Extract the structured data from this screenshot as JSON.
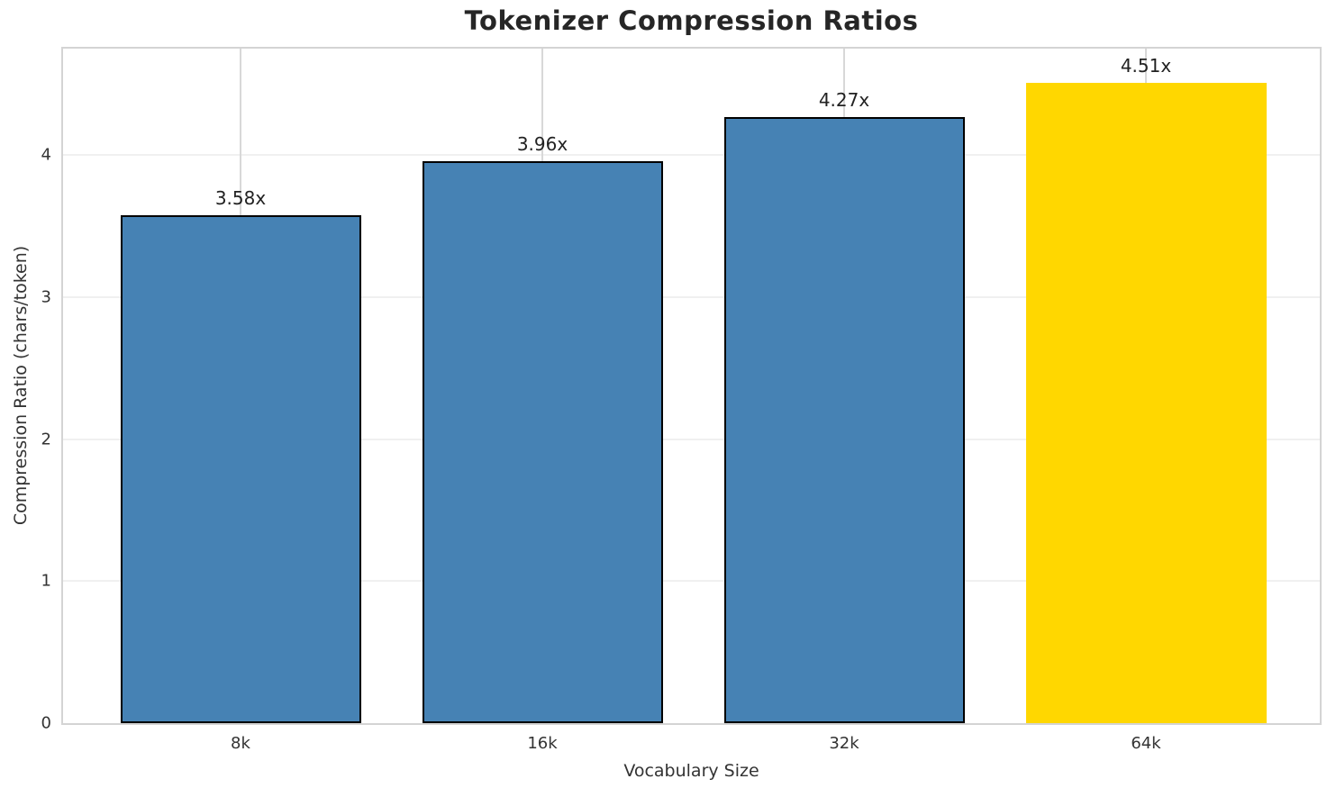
{
  "chart_data": {
    "type": "bar",
    "title": "Tokenizer Compression Ratios",
    "xlabel": "Vocabulary Size",
    "ylabel": "Compression Ratio (chars/token)",
    "categories": [
      "8k",
      "16k",
      "32k",
      "64k"
    ],
    "values": [
      3.58,
      3.96,
      4.27,
      4.51
    ],
    "bar_labels": [
      "3.58x",
      "3.96x",
      "4.27x",
      "4.51x"
    ],
    "bar_colors": [
      "#4682B4",
      "#4682B4",
      "#4682B4",
      "#FFD700"
    ],
    "bar_edge_colors": [
      "#000000",
      "#000000",
      "#000000",
      "none"
    ],
    "ylim": [
      0,
      4.75
    ],
    "yticks": [
      0,
      1,
      2,
      3,
      4
    ],
    "grid": true,
    "legend": "none",
    "colors": {
      "bar_default": "#4682B4",
      "bar_highlight": "#FFD700",
      "bar_edge": "#000000",
      "grid_horizontal": "#f0f0f0",
      "grid_vertical": "#d8d8d8",
      "spine": "#d4d4d4",
      "title_text": "#262626",
      "tick_text": "#333333"
    }
  }
}
